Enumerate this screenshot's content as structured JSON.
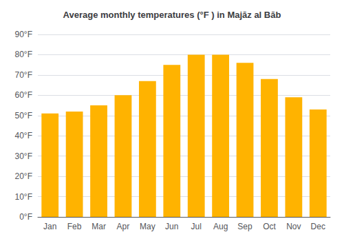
{
  "chart_data": {
    "type": "bar",
    "title": "Average monthly temperatures (°F ) in Majāz al Bāb",
    "categories": [
      "Jan",
      "Feb",
      "Mar",
      "Apr",
      "May",
      "Jun",
      "Jul",
      "Aug",
      "Sep",
      "Oct",
      "Nov",
      "Dec"
    ],
    "values": [
      51,
      52,
      55,
      60,
      67,
      75,
      80,
      80,
      76,
      68,
      59,
      53
    ],
    "color": "#FFB300",
    "ylim": [
      0,
      90
    ],
    "yticks": [
      {
        "value": 0,
        "label": "0°F"
      },
      {
        "value": 10,
        "label": "10°F"
      },
      {
        "value": 20,
        "label": "20°F"
      },
      {
        "value": 30,
        "label": "30°F"
      },
      {
        "value": 40,
        "label": "40°F"
      },
      {
        "value": 50,
        "label": "50°F"
      },
      {
        "value": 60,
        "label": "60°F"
      },
      {
        "value": 70,
        "label": "70°F"
      },
      {
        "value": 80,
        "label": "80°F"
      },
      {
        "value": 90,
        "label": "90°F"
      }
    ],
    "grid": true
  }
}
